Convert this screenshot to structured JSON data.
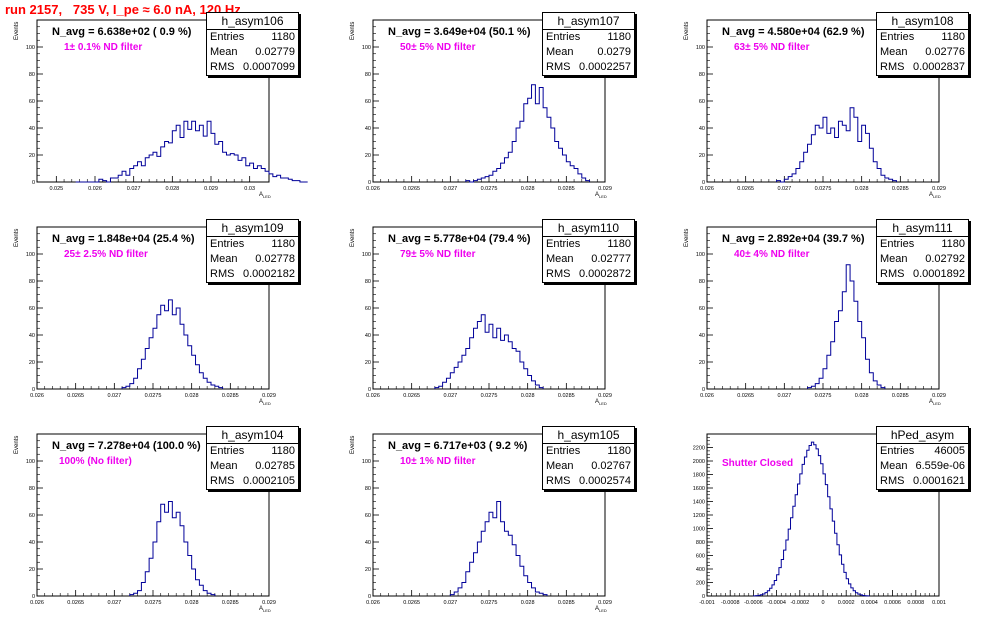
{
  "title": "run 2157,   735 V, I_pe ≈ 6.0 nA, 120 Hz",
  "stat_labels": {
    "entries": "Entries",
    "mean": "Mean",
    "rms": "RMS"
  },
  "line_color": "#000099",
  "text_color": "#ee00ee",
  "title_color": "#ff0000",
  "chart_data": [
    {
      "type": "histogram",
      "name": "h_asym106",
      "n_avg": "N_avg = 6.638e+02 ( 0.9 %)",
      "filter": "1± 0.1% ND filter",
      "entries": "1180",
      "mean": "0.02779",
      "rms": "0.0007099",
      "xlabel": "A",
      "xlabel_sub": "LED",
      "ylabel": "Events",
      "xlim": [
        0.0245,
        0.0305
      ],
      "ylim": [
        0,
        120
      ],
      "xticks": [
        0.025,
        0.026,
        0.027,
        0.028,
        0.029,
        0.03
      ],
      "xtick_labels": [
        "0.025",
        "0.026",
        "0.027",
        "0.028",
        "0.029",
        "0.03"
      ],
      "yticks": [
        0,
        20,
        40,
        60,
        80,
        100,
        120
      ],
      "ytick_labels": [
        "0",
        "20",
        "40",
        "60",
        "80",
        "100",
        ""
      ],
      "bin_start": 0.0255,
      "bin_width": 0.0001,
      "counts": [
        0,
        0,
        0,
        0,
        0,
        0,
        2,
        1,
        0,
        3,
        3,
        5,
        8,
        5,
        10,
        12,
        15,
        12,
        18,
        20,
        22,
        19,
        26,
        30,
        29,
        38,
        42,
        33,
        45,
        39,
        45,
        38,
        42,
        34,
        45,
        36,
        28,
        30,
        22,
        20,
        21,
        20,
        16,
        18,
        12,
        14,
        10,
        12,
        10,
        8,
        6,
        4,
        5,
        3,
        3,
        2,
        1,
        1,
        0,
        0
      ]
    },
    {
      "type": "histogram",
      "name": "h_asym107",
      "n_avg": "N_avg = 3.649e+04 (50.1 %)",
      "filter": "50± 5% ND filter",
      "entries": "1180",
      "mean": "0.0279",
      "rms": "0.0002257",
      "xlabel": "A",
      "xlabel_sub": "LED",
      "ylabel": "Events",
      "xlim": [
        0.026,
        0.029
      ],
      "ylim": [
        0,
        120
      ],
      "xticks": [
        0.026,
        0.0265,
        0.027,
        0.0275,
        0.028,
        0.0285,
        0.029
      ],
      "xtick_labels": [
        "0.026",
        "0.0265",
        "0.027",
        "0.0275",
        "0.028",
        "0.0285",
        "0.029"
      ],
      "yticks": [
        0,
        20,
        40,
        60,
        80,
        100,
        120
      ],
      "ytick_labels": [
        "0",
        "20",
        "40",
        "60",
        "80",
        "100",
        ""
      ],
      "bin_start": 0.0272,
      "bin_width": 5e-05,
      "counts": [
        1,
        0,
        1,
        2,
        3,
        4,
        5,
        8,
        10,
        14,
        18,
        22,
        30,
        40,
        45,
        58,
        62,
        72,
        58,
        70,
        55,
        48,
        40,
        30,
        25,
        20,
        15,
        12,
        10,
        6,
        3,
        1
      ]
    },
    {
      "type": "histogram",
      "name": "h_asym108",
      "n_avg": "N_avg = 4.580e+04 (62.9 %)",
      "filter": "63± 5% ND filter",
      "entries": "1180",
      "mean": "0.02776",
      "rms": "0.0002837",
      "xlabel": "A",
      "xlabel_sub": "LED",
      "ylabel": "Events",
      "xlim": [
        0.026,
        0.029
      ],
      "ylim": [
        0,
        120
      ],
      "xticks": [
        0.026,
        0.0265,
        0.027,
        0.0275,
        0.028,
        0.0285,
        0.029
      ],
      "xtick_labels": [
        "0.026",
        "0.0265",
        "0.027",
        "0.0275",
        "0.028",
        "0.0285",
        "0.029"
      ],
      "yticks": [
        0,
        20,
        40,
        60,
        80,
        100,
        120
      ],
      "ytick_labels": [
        "0",
        "20",
        "40",
        "60",
        "80",
        "100",
        ""
      ],
      "bin_start": 0.0269,
      "bin_width": 5e-05,
      "counts": [
        1,
        0,
        2,
        4,
        6,
        10,
        15,
        22,
        28,
        35,
        42,
        40,
        48,
        36,
        40,
        33,
        45,
        42,
        38,
        55,
        48,
        30,
        42,
        36,
        25,
        15,
        10,
        5,
        3,
        2,
        1
      ]
    },
    {
      "type": "histogram",
      "name": "h_asym109",
      "n_avg": "N_avg = 1.848e+04 (25.4 %)",
      "filter": "25± 2.5% ND filter",
      "entries": "1180",
      "mean": "0.02778",
      "rms": "0.0002182",
      "xlabel": "A",
      "xlabel_sub": "LED",
      "ylabel": "Events",
      "xlim": [
        0.026,
        0.029
      ],
      "ylim": [
        0,
        120
      ],
      "xticks": [
        0.026,
        0.0265,
        0.027,
        0.0275,
        0.028,
        0.0285,
        0.029
      ],
      "xtick_labels": [
        "0.026",
        "0.0265",
        "0.027",
        "0.0275",
        "0.028",
        "0.0285",
        "0.029"
      ],
      "yticks": [
        0,
        20,
        40,
        60,
        80,
        100,
        120
      ],
      "ytick_labels": [
        "0",
        "20",
        "40",
        "60",
        "80",
        "100",
        ""
      ],
      "bin_start": 0.0271,
      "bin_width": 5e-05,
      "counts": [
        1,
        2,
        4,
        8,
        15,
        22,
        30,
        38,
        45,
        55,
        62,
        58,
        66,
        55,
        60,
        48,
        40,
        32,
        25,
        18,
        12,
        8,
        5,
        3,
        2,
        1
      ]
    },
    {
      "type": "histogram",
      "name": "h_asym110",
      "n_avg": "N_avg = 5.778e+04 (79.4 %)",
      "filter": "79± 5% ND filter",
      "entries": "1180",
      "mean": "0.02777",
      "rms": "0.0002872",
      "xlabel": "A",
      "xlabel_sub": "LED",
      "ylabel": "Events",
      "xlim": [
        0.026,
        0.029
      ],
      "ylim": [
        0,
        120
      ],
      "xticks": [
        0.026,
        0.0265,
        0.027,
        0.0275,
        0.028,
        0.0285,
        0.029
      ],
      "xtick_labels": [
        "0.026",
        "0.0265",
        "0.027",
        "0.0275",
        "0.028",
        "0.0285",
        "0.029"
      ],
      "yticks": [
        0,
        20,
        40,
        60,
        80,
        100,
        120
      ],
      "ytick_labels": [
        "0",
        "20",
        "40",
        "60",
        "80",
        "100",
        ""
      ],
      "bin_start": 0.0268,
      "bin_width": 5e-05,
      "counts": [
        1,
        2,
        5,
        8,
        12,
        16,
        20,
        25,
        30,
        38,
        45,
        50,
        55,
        42,
        48,
        38,
        45,
        36,
        40,
        35,
        30,
        28,
        20,
        15,
        10,
        6,
        3,
        1
      ]
    },
    {
      "type": "histogram",
      "name": "h_asym111",
      "n_avg": "N_avg = 2.892e+04 (39.7 %)",
      "filter": "40± 4% ND filter",
      "entries": "1180",
      "mean": "0.02792",
      "rms": "0.0001892",
      "xlabel": "A",
      "xlabel_sub": "LED",
      "ylabel": "Events",
      "xlim": [
        0.026,
        0.029
      ],
      "ylim": [
        0,
        120
      ],
      "xticks": [
        0.026,
        0.0265,
        0.027,
        0.0275,
        0.028,
        0.0285,
        0.029
      ],
      "xtick_labels": [
        "0.026",
        "0.0265",
        "0.027",
        "0.0275",
        "0.028",
        "0.0285",
        "0.029"
      ],
      "yticks": [
        0,
        20,
        40,
        60,
        80,
        100,
        120
      ],
      "ytick_labels": [
        "0",
        "20",
        "40",
        "60",
        "80",
        "100",
        ""
      ],
      "bin_start": 0.0273,
      "bin_width": 5e-05,
      "counts": [
        1,
        2,
        4,
        8,
        15,
        25,
        35,
        50,
        58,
        72,
        92,
        80,
        65,
        50,
        38,
        22,
        12,
        6,
        3,
        1
      ]
    },
    {
      "type": "histogram",
      "name": "h_asym104",
      "n_avg": "N_avg = 7.278e+04 (100.0 %)",
      "filter": "100% (No filter)",
      "entries": "1180",
      "mean": "0.02785",
      "rms": "0.0002105",
      "xlabel": "A",
      "xlabel_sub": "LED",
      "ylabel": "Events",
      "xlim": [
        0.026,
        0.029
      ],
      "ylim": [
        0,
        120
      ],
      "xticks": [
        0.026,
        0.0265,
        0.027,
        0.0275,
        0.028,
        0.0285,
        0.029
      ],
      "xtick_labels": [
        "0.026",
        "0.0265",
        "0.027",
        "0.0275",
        "0.028",
        "0.0285",
        "0.029"
      ],
      "yticks": [
        0,
        20,
        40,
        60,
        80,
        100,
        120
      ],
      "ytick_labels": [
        "0",
        "20",
        "40",
        "60",
        "80",
        "100",
        ""
      ],
      "bin_start": 0.0272,
      "bin_width": 5e-05,
      "counts": [
        1,
        2,
        4,
        10,
        18,
        28,
        40,
        55,
        68,
        62,
        70,
        58,
        62,
        52,
        40,
        30,
        20,
        12,
        8,
        4,
        2,
        1
      ]
    },
    {
      "type": "histogram",
      "name": "h_asym105",
      "n_avg": "N_avg = 6.717e+03 ( 9.2 %)",
      "filter": "10± 1% ND filter",
      "entries": "1180",
      "mean": "0.02767",
      "rms": "0.0002574",
      "xlabel": "A",
      "xlabel_sub": "LED",
      "ylabel": "Events",
      "xlim": [
        0.026,
        0.029
      ],
      "ylim": [
        0,
        120
      ],
      "xticks": [
        0.026,
        0.0265,
        0.027,
        0.0275,
        0.028,
        0.0285,
        0.029
      ],
      "xtick_labels": [
        "0.026",
        "0.0265",
        "0.027",
        "0.0275",
        "0.028",
        "0.0285",
        "0.029"
      ],
      "yticks": [
        0,
        20,
        40,
        60,
        80,
        100,
        120
      ],
      "ytick_labels": [
        "0",
        "20",
        "40",
        "60",
        "80",
        "100",
        ""
      ],
      "bin_start": 0.027,
      "bin_width": 5e-05,
      "counts": [
        1,
        3,
        6,
        10,
        18,
        25,
        32,
        40,
        48,
        55,
        62,
        58,
        70,
        55,
        48,
        45,
        38,
        30,
        22,
        15,
        10,
        6,
        3,
        2,
        1
      ]
    },
    {
      "type": "histogram",
      "name": "hPed_asym",
      "n_avg": "",
      "filter": "Shutter Closed",
      "entries": "46005",
      "mean": "6.559e-06",
      "rms": "0.0001621",
      "xlabel": "",
      "xlabel_sub": "",
      "ylabel": "",
      "xlim": [
        -0.001,
        0.001
      ],
      "ylim": [
        0,
        2400
      ],
      "xticks": [
        -0.001,
        -0.0008,
        -0.0006,
        -0.0004,
        -0.0002,
        0,
        0.0002,
        0.0004,
        0.0006,
        0.0008,
        0.001
      ],
      "xtick_labels": [
        "-0.001",
        "-0.0008",
        "-0.0006",
        "-0.0004",
        "-0.0002",
        "0",
        "0.0002",
        "0.0004",
        "0.0006",
        "0.0008",
        "0.001"
      ],
      "yticks": [
        0,
        200,
        400,
        600,
        800,
        1000,
        1200,
        1400,
        1600,
        1800,
        2000,
        2200,
        2400
      ],
      "ytick_labels": [
        "0",
        "200",
        "400",
        "600",
        "800",
        "1000",
        "1200",
        "1400",
        "1600",
        "1800",
        "2000",
        "2200",
        ""
      ],
      "bin_start": -0.0006,
      "bin_width": 2e-05,
      "counts": [
        2,
        5,
        10,
        18,
        30,
        50,
        78,
        115,
        165,
        230,
        315,
        420,
        540,
        680,
        830,
        990,
        1160,
        1330,
        1500,
        1660,
        1810,
        1950,
        2060,
        2160,
        2230,
        2280,
        2240,
        2180,
        2080,
        1960,
        1810,
        1650,
        1470,
        1290,
        1110,
        930,
        760,
        610,
        470,
        350,
        255,
        180,
        120,
        78,
        48,
        28,
        16,
        8,
        4,
        2
      ]
    }
  ]
}
